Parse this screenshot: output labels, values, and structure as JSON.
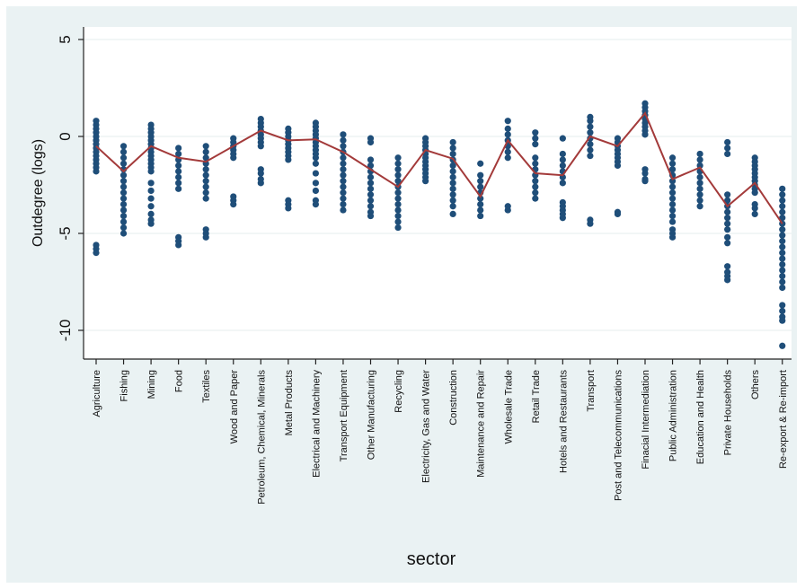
{
  "chart_data": {
    "type": "scatter",
    "xlabel": "sector",
    "ylabel": "Outdegree (logs)",
    "ylim": [
      -11.5,
      6.2
    ],
    "yticks": [
      5,
      0,
      -5,
      -10
    ],
    "ytick_labels": [
      "5",
      "0",
      "-5",
      "-10"
    ],
    "grid": true,
    "legend": "none",
    "colors": {
      "points": "#1f4e79",
      "line": "#a33a3a",
      "background": "#eaf2f3",
      "plot": "#ffffff"
    },
    "categories": [
      "Agriculture",
      "Fishing",
      "Mining",
      "Food",
      "Textiles",
      "Wood and Paper",
      "Petroleum, Chemical, Minerals",
      "Metal Products",
      "Electrical and Machinery",
      "Transport Equipment",
      "Other Manufacturing",
      "Recycling",
      "Electricity, Gas and Water",
      "Construction",
      "Maintenance and Repair",
      "Wholesale Trade",
      "Retail Trade",
      "Hotels and Restaurants",
      "Transport",
      "Post and Telecommunications",
      "Finacial Intermediation",
      "Public Administration",
      "Education and Health",
      "Private Households",
      "Others",
      "Re-export & Re-import"
    ],
    "series": [
      {
        "name": "",
        "kind": "scatter",
        "points_by_category": [
          [
            0.8,
            0.6,
            0.4,
            0.2,
            0.0,
            -0.2,
            -0.4,
            -0.6,
            -0.8,
            -1.0,
            -1.2,
            -1.4,
            -1.6,
            -1.8,
            -5.6,
            -5.8,
            -6.0
          ],
          [
            -0.5,
            -0.8,
            -1.1,
            -1.4,
            -1.7,
            -2.0,
            -2.3,
            -2.6,
            -2.9,
            -3.2,
            -3.5,
            -3.8,
            -4.1,
            -4.4,
            -4.7,
            -5.0
          ],
          [
            0.6,
            0.4,
            0.2,
            0.0,
            -0.2,
            -0.4,
            -0.6,
            -0.8,
            -1.0,
            -1.2,
            -1.4,
            -1.6,
            -1.8,
            -2.4,
            -2.8,
            -3.2,
            -3.6,
            -4.0,
            -4.3,
            -4.5
          ],
          [
            -0.6,
            -0.9,
            -1.2,
            -1.5,
            -1.8,
            -2.1,
            -2.4,
            -2.7,
            -5.2,
            -5.4,
            -5.6
          ],
          [
            -0.5,
            -0.8,
            -1.1,
            -1.4,
            -1.7,
            -2.0,
            -2.3,
            -2.6,
            -2.9,
            -3.2,
            -4.8,
            -5.0,
            -5.2
          ],
          [
            -0.1,
            -0.3,
            -0.5,
            -0.7,
            -0.9,
            -1.1,
            -3.1,
            -3.3,
            -3.5
          ],
          [
            0.9,
            0.7,
            0.5,
            0.3,
            0.1,
            -0.1,
            -0.3,
            -0.5,
            -1.7,
            -1.9,
            -2.2,
            -2.4
          ],
          [
            0.4,
            0.2,
            0.0,
            -0.2,
            -0.4,
            -0.6,
            -0.8,
            -1.0,
            -1.2,
            -3.3,
            -3.5,
            -3.7
          ],
          [
            0.7,
            0.5,
            0.3,
            0.1,
            -0.1,
            -0.3,
            -0.5,
            -0.7,
            -0.9,
            -1.1,
            -1.4,
            -1.9,
            -2.4,
            -2.8,
            -3.3,
            -3.5
          ],
          [
            0.1,
            -0.2,
            -0.5,
            -0.8,
            -1.1,
            -1.4,
            -1.7,
            -2.0,
            -2.3,
            -2.6,
            -2.9,
            -3.2,
            -3.5,
            -3.8
          ],
          [
            -0.1,
            -0.3,
            -1.2,
            -1.5,
            -1.8,
            -2.1,
            -2.4,
            -2.7,
            -3.0,
            -3.3,
            -3.6,
            -3.9,
            -4.1
          ],
          [
            -1.1,
            -1.4,
            -1.7,
            -2.0,
            -2.3,
            -2.6,
            -2.9,
            -3.2,
            -3.5,
            -3.8,
            -4.1,
            -4.4,
            -4.7
          ],
          [
            -0.1,
            -0.3,
            -0.5,
            -0.7,
            -0.9,
            -1.1,
            -1.3,
            -1.5,
            -1.7,
            -1.9,
            -2.1,
            -2.3
          ],
          [
            -0.3,
            -0.6,
            -0.9,
            -1.2,
            -1.5,
            -1.8,
            -2.1,
            -2.4,
            -2.7,
            -3.0,
            -3.3,
            -3.6,
            -4.0
          ],
          [
            -1.4,
            -2.0,
            -2.3,
            -2.6,
            -2.9,
            -3.2,
            -3.5,
            -3.8,
            -4.1
          ],
          [
            0.8,
            0.4,
            0.1,
            -0.2,
            -0.5,
            -0.8,
            -1.1,
            -3.6,
            -3.8
          ],
          [
            0.2,
            -0.1,
            -0.4,
            -1.1,
            -1.4,
            -1.7,
            -2.0,
            -2.3,
            -2.6,
            -2.9,
            -3.2
          ],
          [
            -0.1,
            -0.9,
            -1.2,
            -1.5,
            -1.8,
            -2.1,
            -2.4,
            -3.4,
            -3.6,
            -3.8,
            -4.0,
            -4.2
          ],
          [
            1.0,
            0.8,
            0.5,
            0.2,
            -0.1,
            -0.4,
            -0.7,
            -1.0,
            -4.3,
            -4.5
          ],
          [
            -0.1,
            -0.3,
            -0.5,
            -0.7,
            -0.9,
            -1.1,
            -1.3,
            -1.5,
            -3.9,
            -4.0
          ],
          [
            1.7,
            1.5,
            1.3,
            1.1,
            0.9,
            0.7,
            0.5,
            0.3,
            0.1,
            -1.7,
            -1.9,
            -2.2,
            -2.3
          ],
          [
            -1.1,
            -1.4,
            -1.7,
            -2.0,
            -2.3,
            -2.6,
            -2.9,
            -3.2,
            -3.5,
            -3.8,
            -4.1,
            -4.4,
            -4.8,
            -5.0,
            -5.2
          ],
          [
            -0.9,
            -1.2,
            -1.5,
            -1.8,
            -2.1,
            -2.4,
            -2.7,
            -3.0,
            -3.3,
            -3.6
          ],
          [
            -0.3,
            -0.6,
            -0.9,
            -3.0,
            -3.3,
            -3.6,
            -3.9,
            -4.2,
            -4.5,
            -4.8,
            -5.2,
            -5.5,
            -6.7,
            -7.0,
            -7.2,
            -7.4
          ],
          [
            -1.1,
            -1.3,
            -1.5,
            -1.7,
            -1.9,
            -2.1,
            -2.3,
            -2.5,
            -2.7,
            -2.9,
            -3.5,
            -3.7,
            -4.0
          ],
          [
            -2.7,
            -3.0,
            -3.3,
            -3.6,
            -3.9,
            -4.2,
            -4.5,
            -4.8,
            -5.1,
            -5.4,
            -5.7,
            -6.0,
            -6.3,
            -6.6,
            -6.9,
            -7.2,
            -7.5,
            -7.8,
            -8.7,
            -9.0,
            -9.3,
            -9.5,
            -10.8
          ]
        ]
      },
      {
        "name": "",
        "kind": "line",
        "values": [
          -0.5,
          -1.8,
          -0.5,
          -1.1,
          -1.3,
          -0.5,
          0.3,
          -0.2,
          -0.15,
          -0.8,
          -1.7,
          -2.6,
          -0.7,
          -1.15,
          -3.1,
          -0.2,
          -1.9,
          -2.0,
          0.0,
          -0.5,
          1.2,
          -2.2,
          -1.6,
          -3.6,
          -2.4,
          -4.5
        ]
      }
    ]
  }
}
